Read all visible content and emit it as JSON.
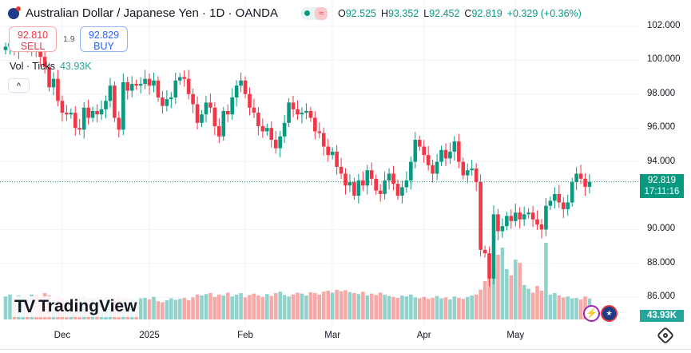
{
  "header": {
    "title": "Australian Dollar / Japanese Yen · 1D · OANDA",
    "icon": "au-flag-icon",
    "wave_icon": "≈"
  },
  "ohlc": {
    "o_label": "O",
    "o": "92.525",
    "h_label": "H",
    "h": "93.352",
    "l_label": "L",
    "l": "92.452",
    "c_label": "C",
    "c": "92.819",
    "change": "+0.329 (+0.36%)"
  },
  "trade": {
    "sell_price": "92.810",
    "sell_label": "SELL",
    "spread": "1.9",
    "buy_price": "92.829",
    "buy_label": "BUY"
  },
  "volume": {
    "label": "Vol · Ticks",
    "value": "43.93K"
  },
  "collapse_icon": "^",
  "logo": {
    "mark": "TV",
    "text": "TradingView"
  },
  "last_price": {
    "price": "92.819",
    "countdown": "17:11:16"
  },
  "colors": {
    "up": "#089981",
    "down": "#f23645",
    "vol_up": "#92d2cc",
    "vol_down": "#f7a9a7"
  },
  "chart_data": {
    "type": "candlestick",
    "title": "Australian Dollar / Japanese Yen · 1D · OANDA",
    "ylim": [
      85.5,
      102.5
    ],
    "price_ticks": [
      "102.000",
      "100.000",
      "98.000",
      "96.000",
      "94.000",
      "90.000",
      "88.000",
      "86.000"
    ],
    "price_tick_values": [
      102,
      100,
      98,
      96,
      94,
      90,
      88,
      86
    ],
    "x_tick_labels": [
      "Dec",
      "2025",
      "Feb",
      "Mar",
      "Apr",
      "May"
    ],
    "x_tick_index": [
      13,
      33,
      55,
      75,
      96,
      117
    ],
    "last_price": 92.819,
    "close": [
      100.8,
      101.0,
      100.6,
      100.9,
      101.2,
      100.7,
      100.9,
      100.5,
      100.2,
      99.6,
      98.4,
      98.9,
      97.6,
      96.9,
      96.8,
      96.9,
      96.0,
      95.9,
      97.2,
      96.6,
      97.0,
      96.8,
      97.1,
      97.6,
      98.5,
      96.6,
      95.9,
      98.7,
      98.2,
      98.6,
      98.5,
      98.6,
      98.9,
      98.5,
      98.8,
      97.8,
      97.3,
      97.7,
      97.8,
      98.8,
      99.0,
      98.9,
      98.0,
      97.4,
      96.3,
      96.8,
      97.5,
      97.2,
      96.1,
      95.5,
      97.0,
      96.8,
      97.8,
      98.5,
      98.8,
      98.0,
      97.2,
      96.9,
      96.1,
      95.8,
      96.0,
      95.3,
      94.8,
      95.5,
      96.3,
      97.5,
      97.1,
      96.8,
      96.9,
      97.0,
      96.6,
      95.8,
      95.7,
      94.9,
      94.4,
      94.6,
      93.7,
      93.3,
      92.6,
      92.8,
      92.0,
      92.9,
      92.6,
      93.5,
      93.0,
      92.3,
      92.1,
      92.9,
      93.3,
      92.7,
      92.0,
      92.5,
      92.9,
      94.0,
      95.3,
      94.9,
      94.4,
      93.8,
      93.3,
      94.0,
      94.7,
      94.2,
      94.6,
      95.2,
      94.0,
      93.2,
      93.5,
      93.6,
      92.8,
      88.8,
      88.6,
      87.1,
      90.9,
      89.9,
      90.2,
      90.8,
      90.5,
      91.0,
      90.6,
      90.9,
      91.0,
      90.6,
      90.3,
      90.0,
      91.4,
      91.7,
      92.1,
      91.6,
      91.2,
      91.6,
      92.8,
      93.3,
      93.0,
      92.525,
      92.819
    ],
    "volume_k": [
      48,
      52,
      45,
      50,
      47,
      44,
      52,
      49,
      46,
      55,
      50,
      42,
      47,
      45,
      41,
      44,
      46,
      43,
      48,
      45,
      44,
      47,
      42,
      46,
      43,
      45,
      48,
      44,
      46,
      43,
      40,
      44,
      45,
      42,
      47,
      38,
      36,
      40,
      44,
      41,
      43,
      45,
      40,
      46,
      52,
      50,
      53,
      55,
      47,
      52,
      50,
      56,
      48,
      52,
      55,
      46,
      51,
      54,
      50,
      47,
      53,
      49,
      55,
      58,
      51,
      48,
      52,
      56,
      54,
      50,
      57,
      55,
      52,
      58,
      60,
      56,
      62,
      59,
      61,
      57,
      55,
      53,
      58,
      50,
      54,
      51,
      56,
      52,
      49,
      47,
      45,
      50,
      48,
      52,
      46,
      44,
      47,
      43,
      45,
      49,
      44,
      46,
      42,
      48,
      45,
      43,
      47,
      50,
      52,
      62,
      80,
      95,
      110,
      135,
      150,
      105,
      92,
      125,
      118,
      72,
      64,
      56,
      70,
      60,
      160,
      52,
      55,
      50,
      46,
      48,
      44,
      45,
      42,
      48,
      43.93
    ]
  }
}
